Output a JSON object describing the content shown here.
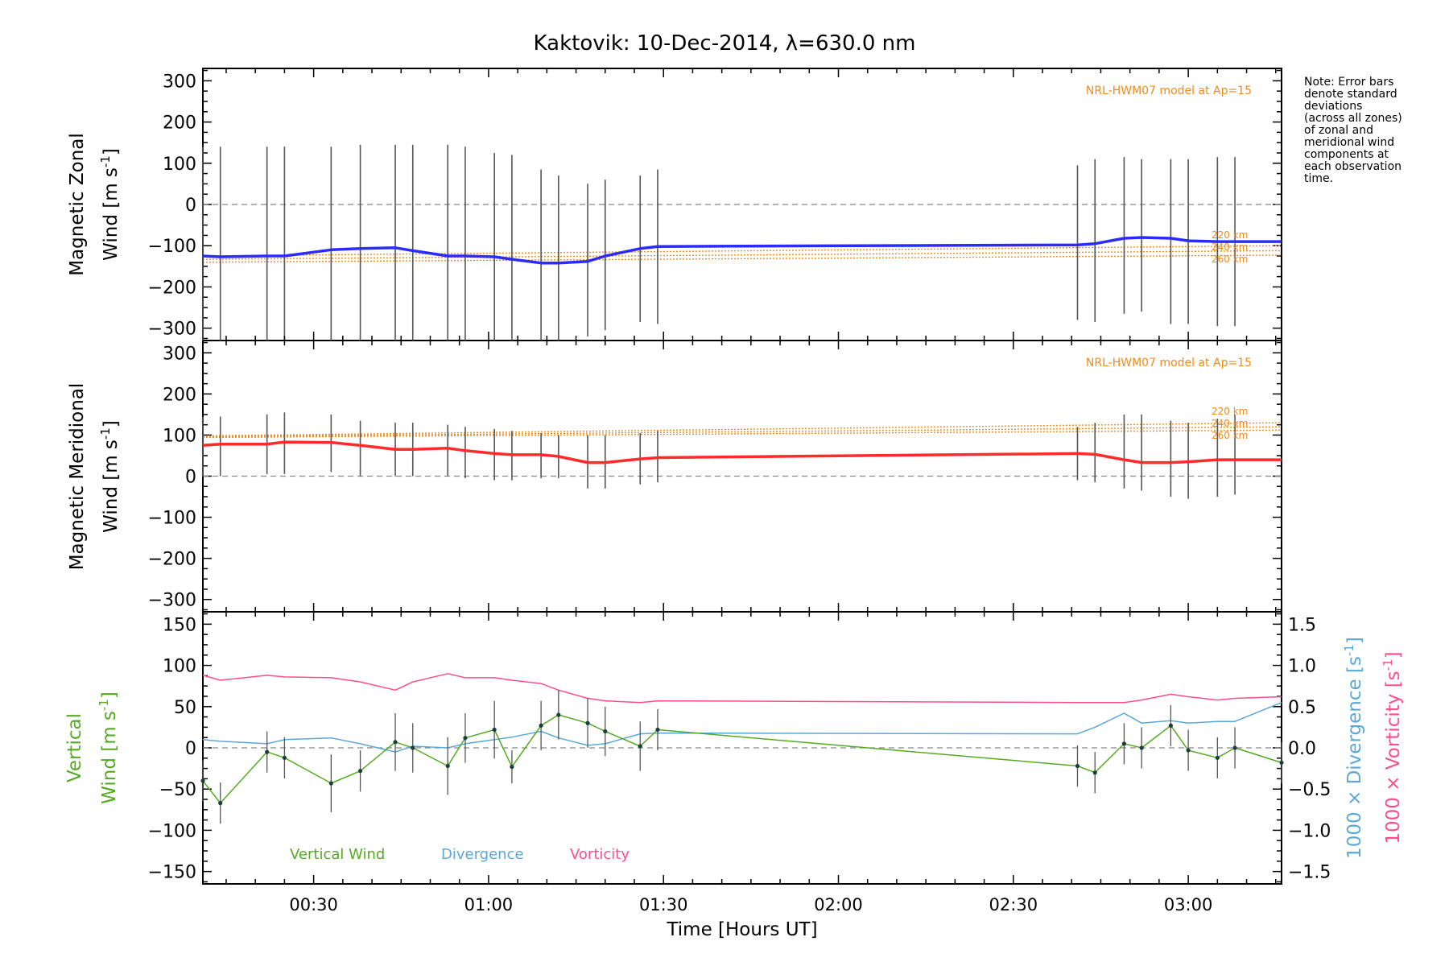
{
  "figure": {
    "title": "Kaktovik: 10-Dec-2014, λ=630.0 nm",
    "xlabel": "Time [Hours UT]",
    "note_lines": [
      "Note: Error bars",
      "denote standard",
      "deviations",
      "(across all zones)",
      "of zonal and",
      "meridional wind",
      "components at",
      "each observation",
      "time."
    ],
    "model_label": "NRL-HWM07 model at Ap=15",
    "altitude_labels": [
      "220 km",
      "240 km",
      "260 km"
    ],
    "colors": {
      "zonal": "#2b2bff",
      "meridional": "#ff2a2a",
      "model": "#f08a1c",
      "vertical": "#55aa22",
      "divergence": "#5aa8d8",
      "vorticity": "#ff4d88",
      "errorbar": "#555555"
    }
  },
  "chart_data": [
    {
      "type": "line",
      "panel": "zonal",
      "ylabel_line1": "Magnetic Zonal",
      "ylabel_line2": "Wind [m s",
      "ylabel_sup": "-1",
      "ylabel_close": "]",
      "ylim": [
        -330,
        330
      ],
      "yticks": [
        -300,
        -200,
        -100,
        0,
        100,
        200,
        300
      ],
      "xlim": [
        "00:11",
        "03:16"
      ],
      "xtick_labels": [
        "00:30",
        "01:00",
        "01:30",
        "02:00",
        "02:30",
        "03:00"
      ],
      "zero_line": true,
      "annotation": "NRL-HWM07 model at Ap=15",
      "series": [
        {
          "name": "",
          "x": [
            "00:11",
            "00:14",
            "00:22",
            "00:25",
            "00:33",
            "00:38",
            "00:44",
            "00:47",
            "00:53",
            "00:56",
            "01:01",
            "01:04",
            "01:09",
            "01:12",
            "01:17",
            "01:20",
            "01:26",
            "01:29",
            "02:41",
            "02:44",
            "02:49",
            "02:52",
            "02:57",
            "03:00",
            "03:05",
            "03:08",
            "03:16"
          ],
          "y": [
            -125,
            -127,
            -125,
            -125,
            -110,
            -107,
            -105,
            -112,
            -125,
            -125,
            -127,
            -133,
            -142,
            -142,
            -138,
            -125,
            -107,
            -102,
            -98,
            -95,
            -82,
            -80,
            -82,
            -88,
            -90,
            -90,
            -90
          ]
        }
      ],
      "errorbars": [
        {
          "x": "00:11",
          "lo": -330,
          "hi": 140
        },
        {
          "x": "00:14",
          "lo": -330,
          "hi": 140
        },
        {
          "x": "00:22",
          "lo": -330,
          "hi": 140
        },
        {
          "x": "00:25",
          "lo": -330,
          "hi": 140
        },
        {
          "x": "00:33",
          "lo": -330,
          "hi": 140
        },
        {
          "x": "00:38",
          "lo": -330,
          "hi": 145
        },
        {
          "x": "00:44",
          "lo": -330,
          "hi": 145
        },
        {
          "x": "00:47",
          "lo": -330,
          "hi": 145
        },
        {
          "x": "00:53",
          "lo": -330,
          "hi": 145
        },
        {
          "x": "00:56",
          "lo": -330,
          "hi": 140
        },
        {
          "x": "01:01",
          "lo": -330,
          "hi": 125
        },
        {
          "x": "01:04",
          "lo": -330,
          "hi": 120
        },
        {
          "x": "01:09",
          "lo": -330,
          "hi": 85
        },
        {
          "x": "01:12",
          "lo": -330,
          "hi": 70
        },
        {
          "x": "01:17",
          "lo": -320,
          "hi": 50
        },
        {
          "x": "01:20",
          "lo": -305,
          "hi": 60
        },
        {
          "x": "01:26",
          "lo": -285,
          "hi": 70
        },
        {
          "x": "01:29",
          "lo": -290,
          "hi": 85
        },
        {
          "x": "02:41",
          "lo": -280,
          "hi": 95
        },
        {
          "x": "02:44",
          "lo": -285,
          "hi": 110
        },
        {
          "x": "02:49",
          "lo": -265,
          "hi": 115
        },
        {
          "x": "02:52",
          "lo": -260,
          "hi": 110
        },
        {
          "x": "02:57",
          "lo": -290,
          "hi": 110
        },
        {
          "x": "03:00",
          "lo": -290,
          "hi": 110
        },
        {
          "x": "03:05",
          "lo": -295,
          "hi": 115
        },
        {
          "x": "03:08",
          "lo": -295,
          "hi": 115
        }
      ],
      "model_series": [
        {
          "label": "220 km",
          "x": [
            "00:11",
            "03:16"
          ],
          "y": [
            -125,
            -100
          ]
        },
        {
          "label": "240 km",
          "x": [
            "00:11",
            "03:16"
          ],
          "y": [
            -133,
            -112
          ]
        },
        {
          "label": "260 km",
          "x": [
            "00:11",
            "03:16"
          ],
          "y": [
            -140,
            -123
          ]
        }
      ]
    },
    {
      "type": "line",
      "panel": "meridional",
      "ylabel_line1": "Magnetic Meridional",
      "ylabel_line2": "Wind [m s",
      "ylabel_sup": "-1",
      "ylabel_close": "]",
      "ylim": [
        -330,
        330
      ],
      "yticks": [
        -300,
        -200,
        -100,
        0,
        100,
        200,
        300
      ],
      "zero_line": true,
      "annotation": "NRL-HWM07 model at Ap=15",
      "series": [
        {
          "name": "",
          "x": [
            "00:11",
            "00:14",
            "00:22",
            "00:25",
            "00:33",
            "00:38",
            "00:44",
            "00:47",
            "00:53",
            "00:56",
            "01:01",
            "01:04",
            "01:09",
            "01:12",
            "01:17",
            "01:20",
            "01:26",
            "01:29",
            "02:41",
            "02:44",
            "02:49",
            "02:52",
            "02:57",
            "03:00",
            "03:05",
            "03:08",
            "03:16"
          ],
          "y": [
            75,
            78,
            78,
            83,
            82,
            75,
            65,
            65,
            68,
            62,
            55,
            52,
            52,
            48,
            33,
            33,
            42,
            45,
            55,
            53,
            40,
            33,
            33,
            35,
            40,
            40,
            40
          ]
        }
      ],
      "errorbars": [
        {
          "x": "00:11",
          "lo": 0,
          "hi": 145
        },
        {
          "x": "00:14",
          "lo": 0,
          "hi": 145
        },
        {
          "x": "00:22",
          "lo": 5,
          "hi": 150
        },
        {
          "x": "00:25",
          "lo": 5,
          "hi": 155
        },
        {
          "x": "00:33",
          "lo": 10,
          "hi": 150
        },
        {
          "x": "00:38",
          "lo": 0,
          "hi": 135
        },
        {
          "x": "00:44",
          "lo": 0,
          "hi": 130
        },
        {
          "x": "00:47",
          "lo": 0,
          "hi": 130
        },
        {
          "x": "00:53",
          "lo": 0,
          "hi": 125
        },
        {
          "x": "00:56",
          "lo": -5,
          "hi": 120
        },
        {
          "x": "01:01",
          "lo": -10,
          "hi": 115
        },
        {
          "x": "01:04",
          "lo": -10,
          "hi": 110
        },
        {
          "x": "01:09",
          "lo": -5,
          "hi": 105
        },
        {
          "x": "01:12",
          "lo": -5,
          "hi": 100
        },
        {
          "x": "01:17",
          "lo": -30,
          "hi": 100
        },
        {
          "x": "01:20",
          "lo": -30,
          "hi": 100
        },
        {
          "x": "01:26",
          "lo": -20,
          "hi": 105
        },
        {
          "x": "01:29",
          "lo": -15,
          "hi": 110
        },
        {
          "x": "02:41",
          "lo": -10,
          "hi": 120
        },
        {
          "x": "02:44",
          "lo": -15,
          "hi": 130
        },
        {
          "x": "02:49",
          "lo": -30,
          "hi": 150
        },
        {
          "x": "02:52",
          "lo": -35,
          "hi": 150
        },
        {
          "x": "02:57",
          "lo": -50,
          "hi": 135
        },
        {
          "x": "03:00",
          "lo": -55,
          "hi": 130
        },
        {
          "x": "03:05",
          "lo": -50,
          "hi": 140
        },
        {
          "x": "03:08",
          "lo": -45,
          "hi": 150
        }
      ],
      "model_series": [
        {
          "label": "220 km",
          "x": [
            "00:11",
            "03:16"
          ],
          "y": [
            98,
            130
          ]
        },
        {
          "label": "240 km",
          "x": [
            "00:11",
            "03:16"
          ],
          "y": [
            96,
            120
          ]
        },
        {
          "label": "260 km",
          "x": [
            "00:11",
            "03:16"
          ],
          "y": [
            94,
            112
          ]
        }
      ]
    },
    {
      "type": "line",
      "panel": "vertical",
      "ylabel_line1": "Vertical",
      "ylabel_line2": "Wind [m s",
      "ylabel_sup": "-1",
      "ylabel_close": "]",
      "ylim": [
        -165,
        165
      ],
      "yticks": [
        -150,
        -100,
        -50,
        0,
        50,
        100,
        150
      ],
      "right_axis": {
        "ylim": [
          -1.65,
          1.65
        ],
        "yticks": [
          -1.5,
          -1.0,
          -0.5,
          0.0,
          0.5,
          1.0,
          1.5
        ],
        "ytick_labels": [
          "−1.5",
          "−1.0",
          "−0.5",
          "0.0",
          "0.5",
          "1.0",
          "1.5"
        ],
        "label1": "1000 × Divergence [s",
        "label2": "1000 × Vorticity [s",
        "label_sup": "-1",
        "label_close": "]"
      },
      "zero_line": true,
      "legend": [
        "Vertical Wind",
        "Divergence",
        "Vorticity"
      ],
      "series": [
        {
          "name": "Vertical Wind",
          "axis": "left",
          "x": [
            "00:11",
            "00:14",
            "00:22",
            "00:25",
            "00:33",
            "00:38",
            "00:44",
            "00:47",
            "00:53",
            "00:56",
            "01:01",
            "01:04",
            "01:09",
            "01:12",
            "01:17",
            "01:20",
            "01:26",
            "01:29",
            "02:41",
            "02:44",
            "02:49",
            "02:52",
            "02:57",
            "03:00",
            "03:05",
            "03:08",
            "03:16"
          ],
          "y": [
            -40,
            -67,
            -5,
            -12,
            -43,
            -28,
            7,
            0,
            -22,
            12,
            22,
            -23,
            27,
            40,
            30,
            20,
            2,
            22,
            -22,
            -30,
            5,
            0,
            27,
            -3,
            -12,
            0,
            -18
          ],
          "err": [
            25,
            25,
            25,
            25,
            35,
            25,
            35,
            30,
            35,
            30,
            35,
            20,
            30,
            30,
            30,
            30,
            30,
            25,
            25,
            25,
            25,
            25,
            25,
            25,
            25,
            25,
            25
          ]
        },
        {
          "name": "Divergence",
          "axis": "right",
          "x": [
            "00:11",
            "00:14",
            "00:22",
            "00:25",
            "00:33",
            "00:38",
            "00:44",
            "00:47",
            "00:53",
            "00:56",
            "01:01",
            "01:04",
            "01:09",
            "01:12",
            "01:17",
            "01:20",
            "01:26",
            "01:29",
            "02:41",
            "02:44",
            "02:49",
            "02:52",
            "02:57",
            "03:00",
            "03:05",
            "03:08",
            "03:16"
          ],
          "y": [
            0.1,
            0.08,
            0.05,
            0.1,
            0.12,
            0.05,
            -0.05,
            0.02,
            0.0,
            0.05,
            0.1,
            0.13,
            0.2,
            0.12,
            0.03,
            0.05,
            0.17,
            0.18,
            0.17,
            0.25,
            0.42,
            0.3,
            0.33,
            0.3,
            0.32,
            0.32,
            0.55
          ]
        },
        {
          "name": "Vorticity",
          "axis": "right",
          "x": [
            "00:11",
            "00:14",
            "00:22",
            "00:25",
            "00:33",
            "00:38",
            "00:44",
            "00:47",
            "00:53",
            "00:56",
            "01:01",
            "01:04",
            "01:09",
            "01:12",
            "01:17",
            "01:20",
            "01:26",
            "01:29",
            "02:41",
            "02:44",
            "02:49",
            "02:52",
            "02:57",
            "03:00",
            "03:05",
            "03:08",
            "03:16"
          ],
          "y": [
            0.88,
            0.82,
            0.88,
            0.86,
            0.85,
            0.8,
            0.7,
            0.8,
            0.9,
            0.85,
            0.85,
            0.82,
            0.78,
            0.7,
            0.6,
            0.57,
            0.55,
            0.57,
            0.55,
            0.55,
            0.55,
            0.58,
            0.65,
            0.62,
            0.58,
            0.6,
            0.62
          ]
        }
      ]
    }
  ]
}
